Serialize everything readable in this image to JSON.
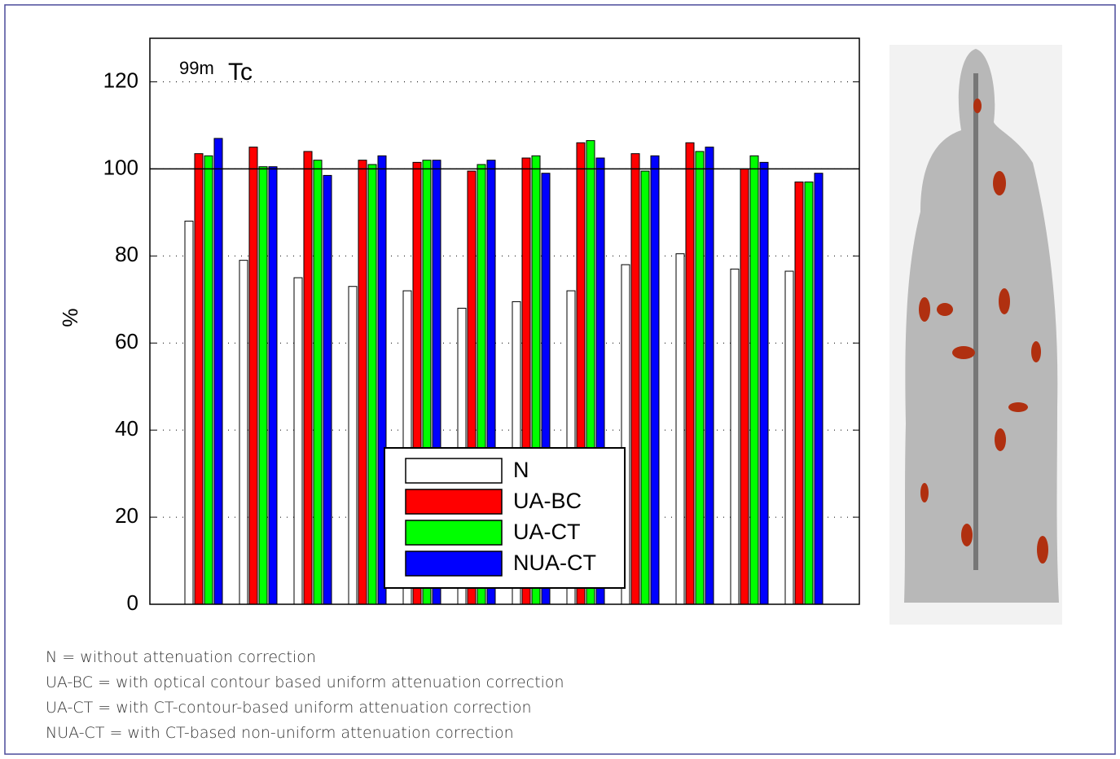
{
  "chart_data": {
    "type": "bar",
    "annotation_sup": "99m",
    "annotation": "Tc",
    "ylabel": "%",
    "categories": [
      null,
      null,
      null,
      null,
      null,
      null,
      null,
      null,
      null,
      null,
      null,
      null
    ],
    "series": [
      {
        "name": "N",
        "color": "#ffffff",
        "values": [
          88,
          79,
          75,
          73,
          72,
          68,
          69.5,
          72,
          78,
          80.5,
          77,
          76.5
        ]
      },
      {
        "name": "UA-BC",
        "color": "#ff0000",
        "values": [
          103.5,
          105,
          104,
          102,
          101.5,
          99.5,
          102.5,
          106,
          103.5,
          106,
          100,
          97
        ]
      },
      {
        "name": "UA-CT",
        "color": "#00ff00",
        "values": [
          103,
          100.5,
          102,
          101,
          102,
          101,
          103,
          106.5,
          99.5,
          104,
          103,
          97
        ]
      },
      {
        "name": "NUA-CT",
        "color": "#0000ff",
        "values": [
          107,
          100.5,
          98.5,
          103,
          102,
          102,
          99,
          102.5,
          103,
          105,
          101.5,
          99
        ]
      }
    ],
    "ylim": [
      0,
      130
    ],
    "yticks": [
      0,
      20,
      40,
      60,
      80,
      100,
      120
    ],
    "grid": true,
    "hline": 100,
    "legend": "bottom-center"
  },
  "notes": [
    "N = without attenuation correction",
    "UA-BC = with optical contour based uniform attenuation correction",
    "UA-CT = with CT-contour-based uniform attenuation correction",
    "NUA-CT = with CT-based non-uniform attenuation correction"
  ]
}
